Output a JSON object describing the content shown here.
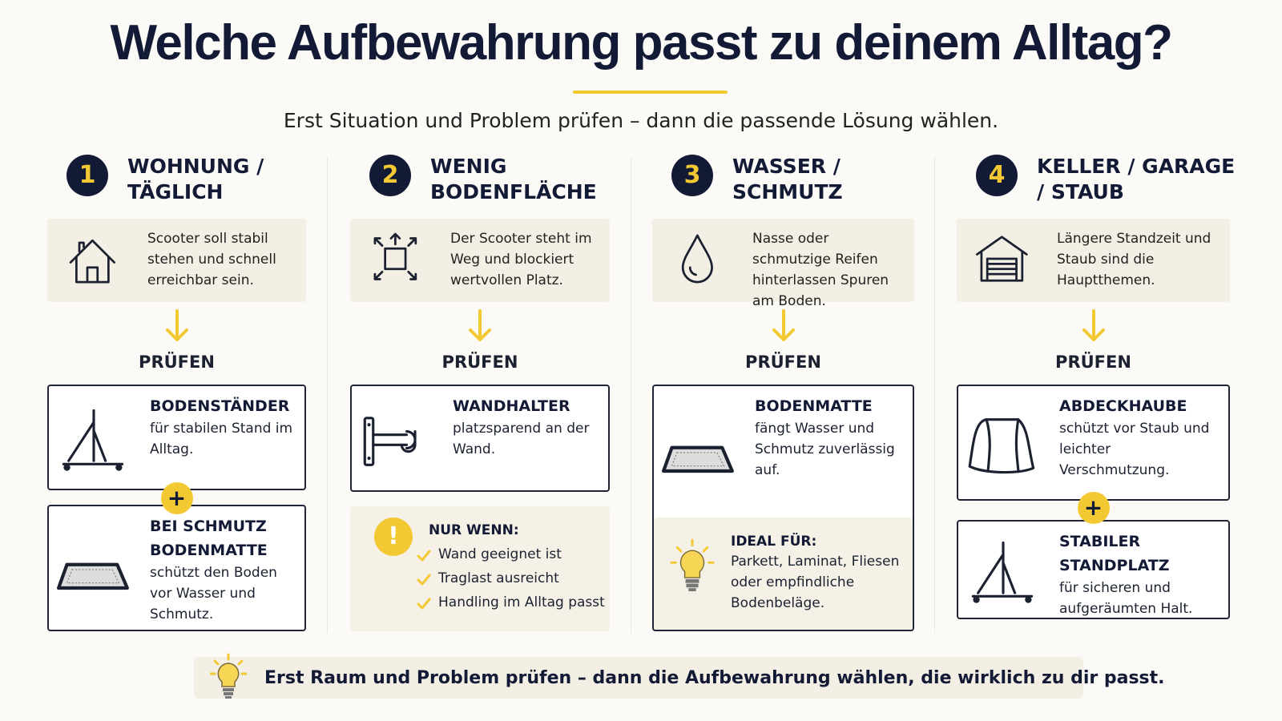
{
  "header": {
    "title": "Welche Aufbewahrung passt zu deinem Alltag?",
    "subtitle": "Erst Situation und Problem prüfen – dann die passende Lösung wählen."
  },
  "columns": [
    {
      "number": "1",
      "title": "WOHNUNG / TÄGLICH",
      "problem": "Scooter soll stabil stehen und schnell erreichbar sein.",
      "check": "PRÜFEN",
      "solutions": [
        {
          "title": "BODENSTÄNDER",
          "text": "für stabilen Stand im Alltag."
        },
        {
          "title": "BEI SCHMUTZ BODENMATTE",
          "text": "schützt den Boden vor Wasser und Schmutz."
        }
      ],
      "joiner": "+"
    },
    {
      "number": "2",
      "title": "WENIG BODENFLÄCHE",
      "problem": "Der Scooter steht im Weg und blockiert wertvollen Platz.",
      "check": "PRÜFEN",
      "solutions": [
        {
          "title": "WANDHALTER",
          "text": "platzsparend an der Wand."
        }
      ],
      "note": {
        "icon": "!",
        "title": "NUR WENN:",
        "items": [
          "Wand geeignet ist",
          "Traglast ausreicht",
          "Handling im Alltag passt"
        ]
      }
    },
    {
      "number": "3",
      "title": "WASSER / SCHMUTZ",
      "problem": "Nasse oder schmutzige Reifen hinterlassen Spuren am Boden.",
      "check": "PRÜFEN",
      "solutions": [
        {
          "title": "BODENMATTE",
          "text": "fängt Wasser und Schmutz zuverlässig auf."
        }
      ],
      "note": {
        "title": "IDEAL FÜR:",
        "text": "Parkett, Laminat, Fliesen oder empfindliche Bodenbeläge."
      }
    },
    {
      "number": "4",
      "title": "KELLER / GARAGE / STAUB",
      "problem": "Längere Standzeit und Staub sind die Hauptthemen.",
      "check": "PRÜFEN",
      "solutions": [
        {
          "title": "ABDECKHAUBE",
          "text": "schützt vor Staub und leichter Verschmutzung."
        },
        {
          "title": "STABILER STANDPLATZ",
          "text": "für sicheren und aufgeräumten Halt."
        }
      ],
      "joiner": "+"
    }
  ],
  "footer": {
    "text": "Erst Raum und Problem prüfen – dann die Aufbewahrung wählen, die wirklich zu dir passt."
  }
}
